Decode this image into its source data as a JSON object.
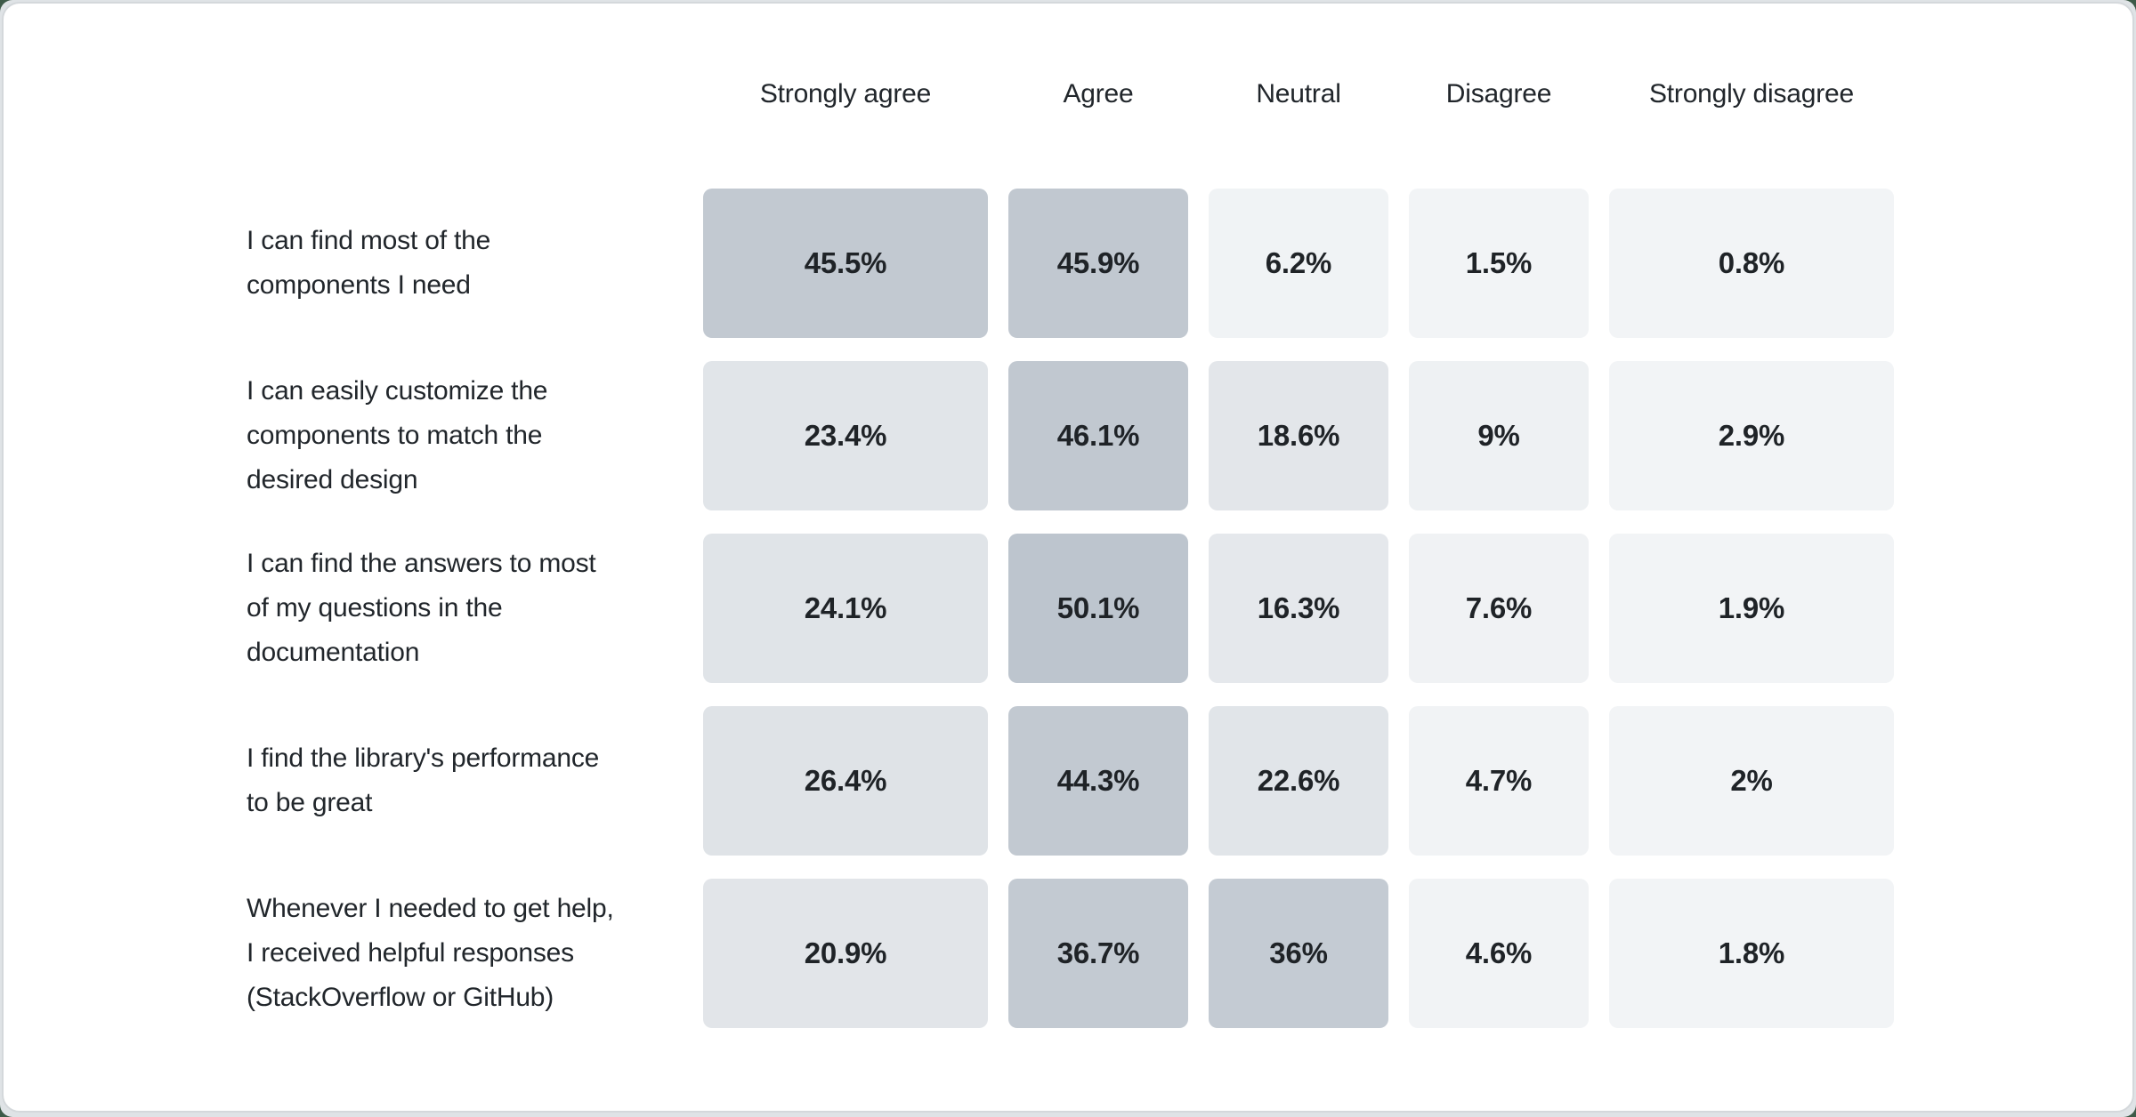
{
  "page": {
    "outer_background_color": "#3d5a48",
    "frame_color": "#dfe3e6",
    "card_background": "#ffffff",
    "card_border_color": "#d4d8db",
    "text_color": "#21262b"
  },
  "chart_data": {
    "type": "heatmap",
    "title": "",
    "legend_position": "none",
    "grid": false,
    "columns": [
      "Strongly agree",
      "Agree",
      "Neutral",
      "Disagree",
      "Strongly disagree"
    ],
    "rows": [
      "I can find most of the components I need",
      "I can easily customize the components to match the desired design",
      "I can find the answers to most of my questions in the documentation",
      "I find the library's performance to be great",
      "Whenever I needed to get help, I received helpful responses (StackOverflow or GitHub)"
    ],
    "row_labels_display": [
      "I can find most of the\ncomponents I need",
      "I can easily customize the\ncomponents to match the\ndesired design",
      "I can find the answers to most\nof my questions in the\ndocumentation",
      "I find the library's performance\nto be great",
      "Whenever I needed to get help,\nI received helpful responses\n(StackOverflow or GitHub)"
    ],
    "values_percent": [
      [
        45.5,
        45.9,
        6.2,
        1.5,
        0.8
      ],
      [
        23.4,
        46.1,
        18.6,
        9,
        2.9
      ],
      [
        24.1,
        50.1,
        16.3,
        7.6,
        1.9
      ],
      [
        26.4,
        44.3,
        22.6,
        4.7,
        2
      ],
      [
        20.9,
        36.7,
        36,
        4.6,
        1.8
      ]
    ],
    "value_labels": [
      [
        "45.5%",
        "45.9%",
        "6.2%",
        "1.5%",
        "0.8%"
      ],
      [
        "23.4%",
        "46.1%",
        "18.6%",
        "9%",
        "2.9%"
      ],
      [
        "24.1%",
        "50.1%",
        "16.3%",
        "7.6%",
        "1.9%"
      ],
      [
        "26.4%",
        "44.3%",
        "22.6%",
        "4.7%",
        "2%"
      ],
      [
        "20.9%",
        "36.7%",
        "36%",
        "4.6%",
        "1.8%"
      ]
    ],
    "cell_colors": [
      [
        "#c2c9d1",
        "#c1c8d0",
        "#f0f3f5",
        "#f2f4f6",
        "#f2f4f6"
      ],
      [
        "#e1e5e9",
        "#c1c8d0",
        "#e3e6ea",
        "#eef1f3",
        "#f2f4f6"
      ],
      [
        "#e0e4e8",
        "#bdc5ce",
        "#e5e8ec",
        "#f0f2f4",
        "#f2f4f6"
      ],
      [
        "#dfe3e7",
        "#c2c9d1",
        "#e1e5e9",
        "#f1f3f5",
        "#f2f4f6"
      ],
      [
        "#e2e5e9",
        "#c3cad2",
        "#c4cbd3",
        "#f1f3f5",
        "#f2f4f6"
      ]
    ],
    "value_text_color": "#1f2327"
  }
}
